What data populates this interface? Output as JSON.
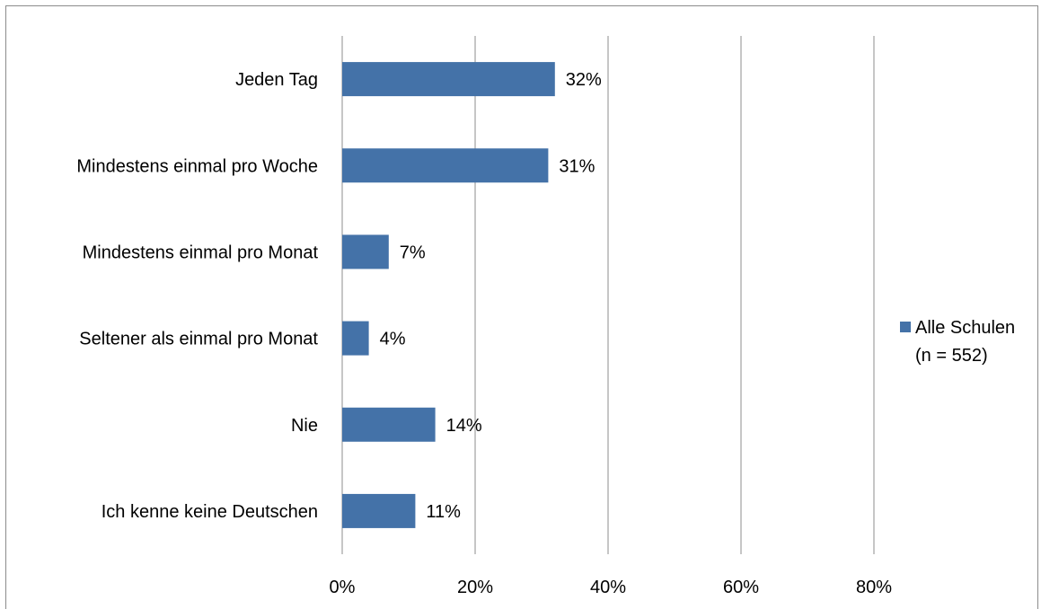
{
  "chart_data": {
    "type": "bar",
    "orientation": "horizontal",
    "categories": [
      "Jeden Tag",
      "Mindestens einmal pro Woche",
      "Mindestens einmal pro Monat",
      "Seltener als einmal pro Monat",
      "Nie",
      "Ich kenne keine Deutschen"
    ],
    "series": [
      {
        "name": "Alle Schulen (n = 552)",
        "legend_lines": [
          "Alle Schulen",
          "(n = 552)"
        ],
        "values": [
          32,
          31,
          7,
          4,
          14,
          11
        ],
        "labels": [
          "32%",
          "31%",
          "7%",
          "4%",
          "14%",
          "11%"
        ],
        "color": "#4472A8"
      }
    ],
    "xlim": [
      0,
      80
    ],
    "xticks": [
      0,
      20,
      40,
      60,
      80
    ],
    "xtick_labels": [
      "0%",
      "20%",
      "40%",
      "60%",
      "80%"
    ],
    "grid": "vertical",
    "legend_position": "right",
    "title": "",
    "xlabel": "",
    "ylabel": ""
  }
}
